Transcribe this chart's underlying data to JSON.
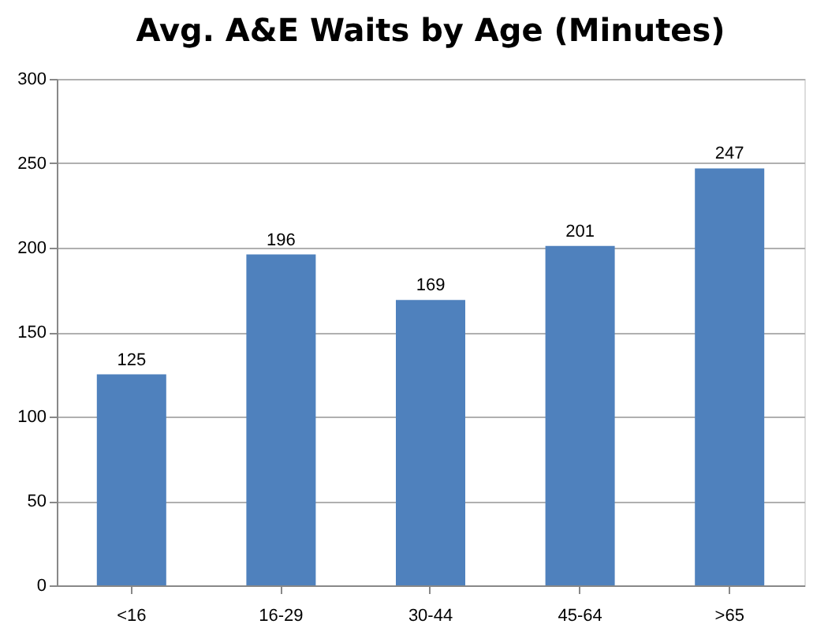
{
  "chart_data": {
    "type": "bar",
    "title": "Avg. A&E Waits by Age (Minutes)",
    "categories": [
      "<16",
      "16-29",
      "30-44",
      "45-64",
      ">65"
    ],
    "values": [
      125,
      196,
      169,
      201,
      247
    ],
    "color": "#4f81bd",
    "ylim": [
      0,
      300
    ],
    "yticks": [
      0,
      50,
      100,
      150,
      200,
      250,
      300
    ],
    "grid": "y",
    "data_labels": true
  }
}
